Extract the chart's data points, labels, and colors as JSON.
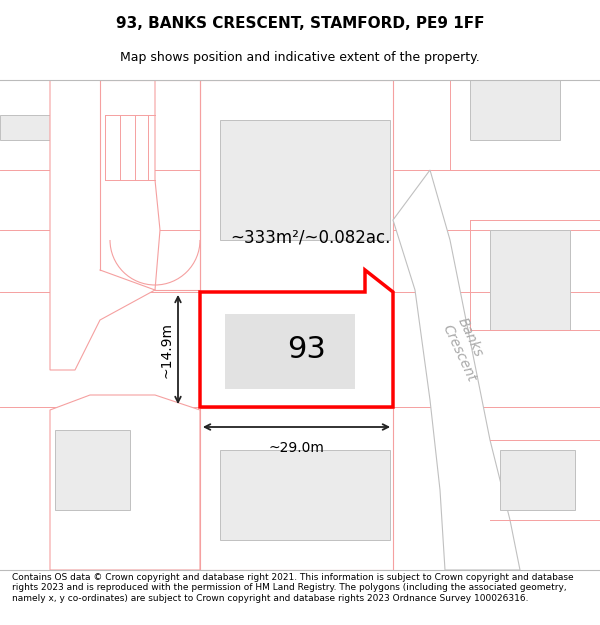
{
  "title_line1": "93, BANKS CRESCENT, STAMFORD, PE9 1FF",
  "title_line2": "Map shows position and indicative extent of the property.",
  "footer_text": "Contains OS data © Crown copyright and database right 2021. This information is subject to Crown copyright and database rights 2023 and is reproduced with the permission of HM Land Registry. The polygons (including the associated geometry, namely x, y co-ordinates) are subject to Crown copyright and database rights 2023 Ordnance Survey 100026316.",
  "plot_outline_color": "#ff0000",
  "road_label": "Banks\nCrescent",
  "dim_label_width": "~29.0m",
  "dim_label_height": "~14.9m",
  "area_label": "~333m²/~0.082ac.",
  "number_label": "93",
  "building_fill": "#e2e2e2",
  "map_bg": "#ffffff",
  "neighbor_fill": "#ebebeb",
  "pink_line": "#f5a0a0",
  "gray_line": "#c0c0c0",
  "dim_line_color": "#222222",
  "road_label_color": "#aaaaaa",
  "title_fontsize": 11,
  "subtitle_fontsize": 9,
  "footer_fontsize": 6.5
}
